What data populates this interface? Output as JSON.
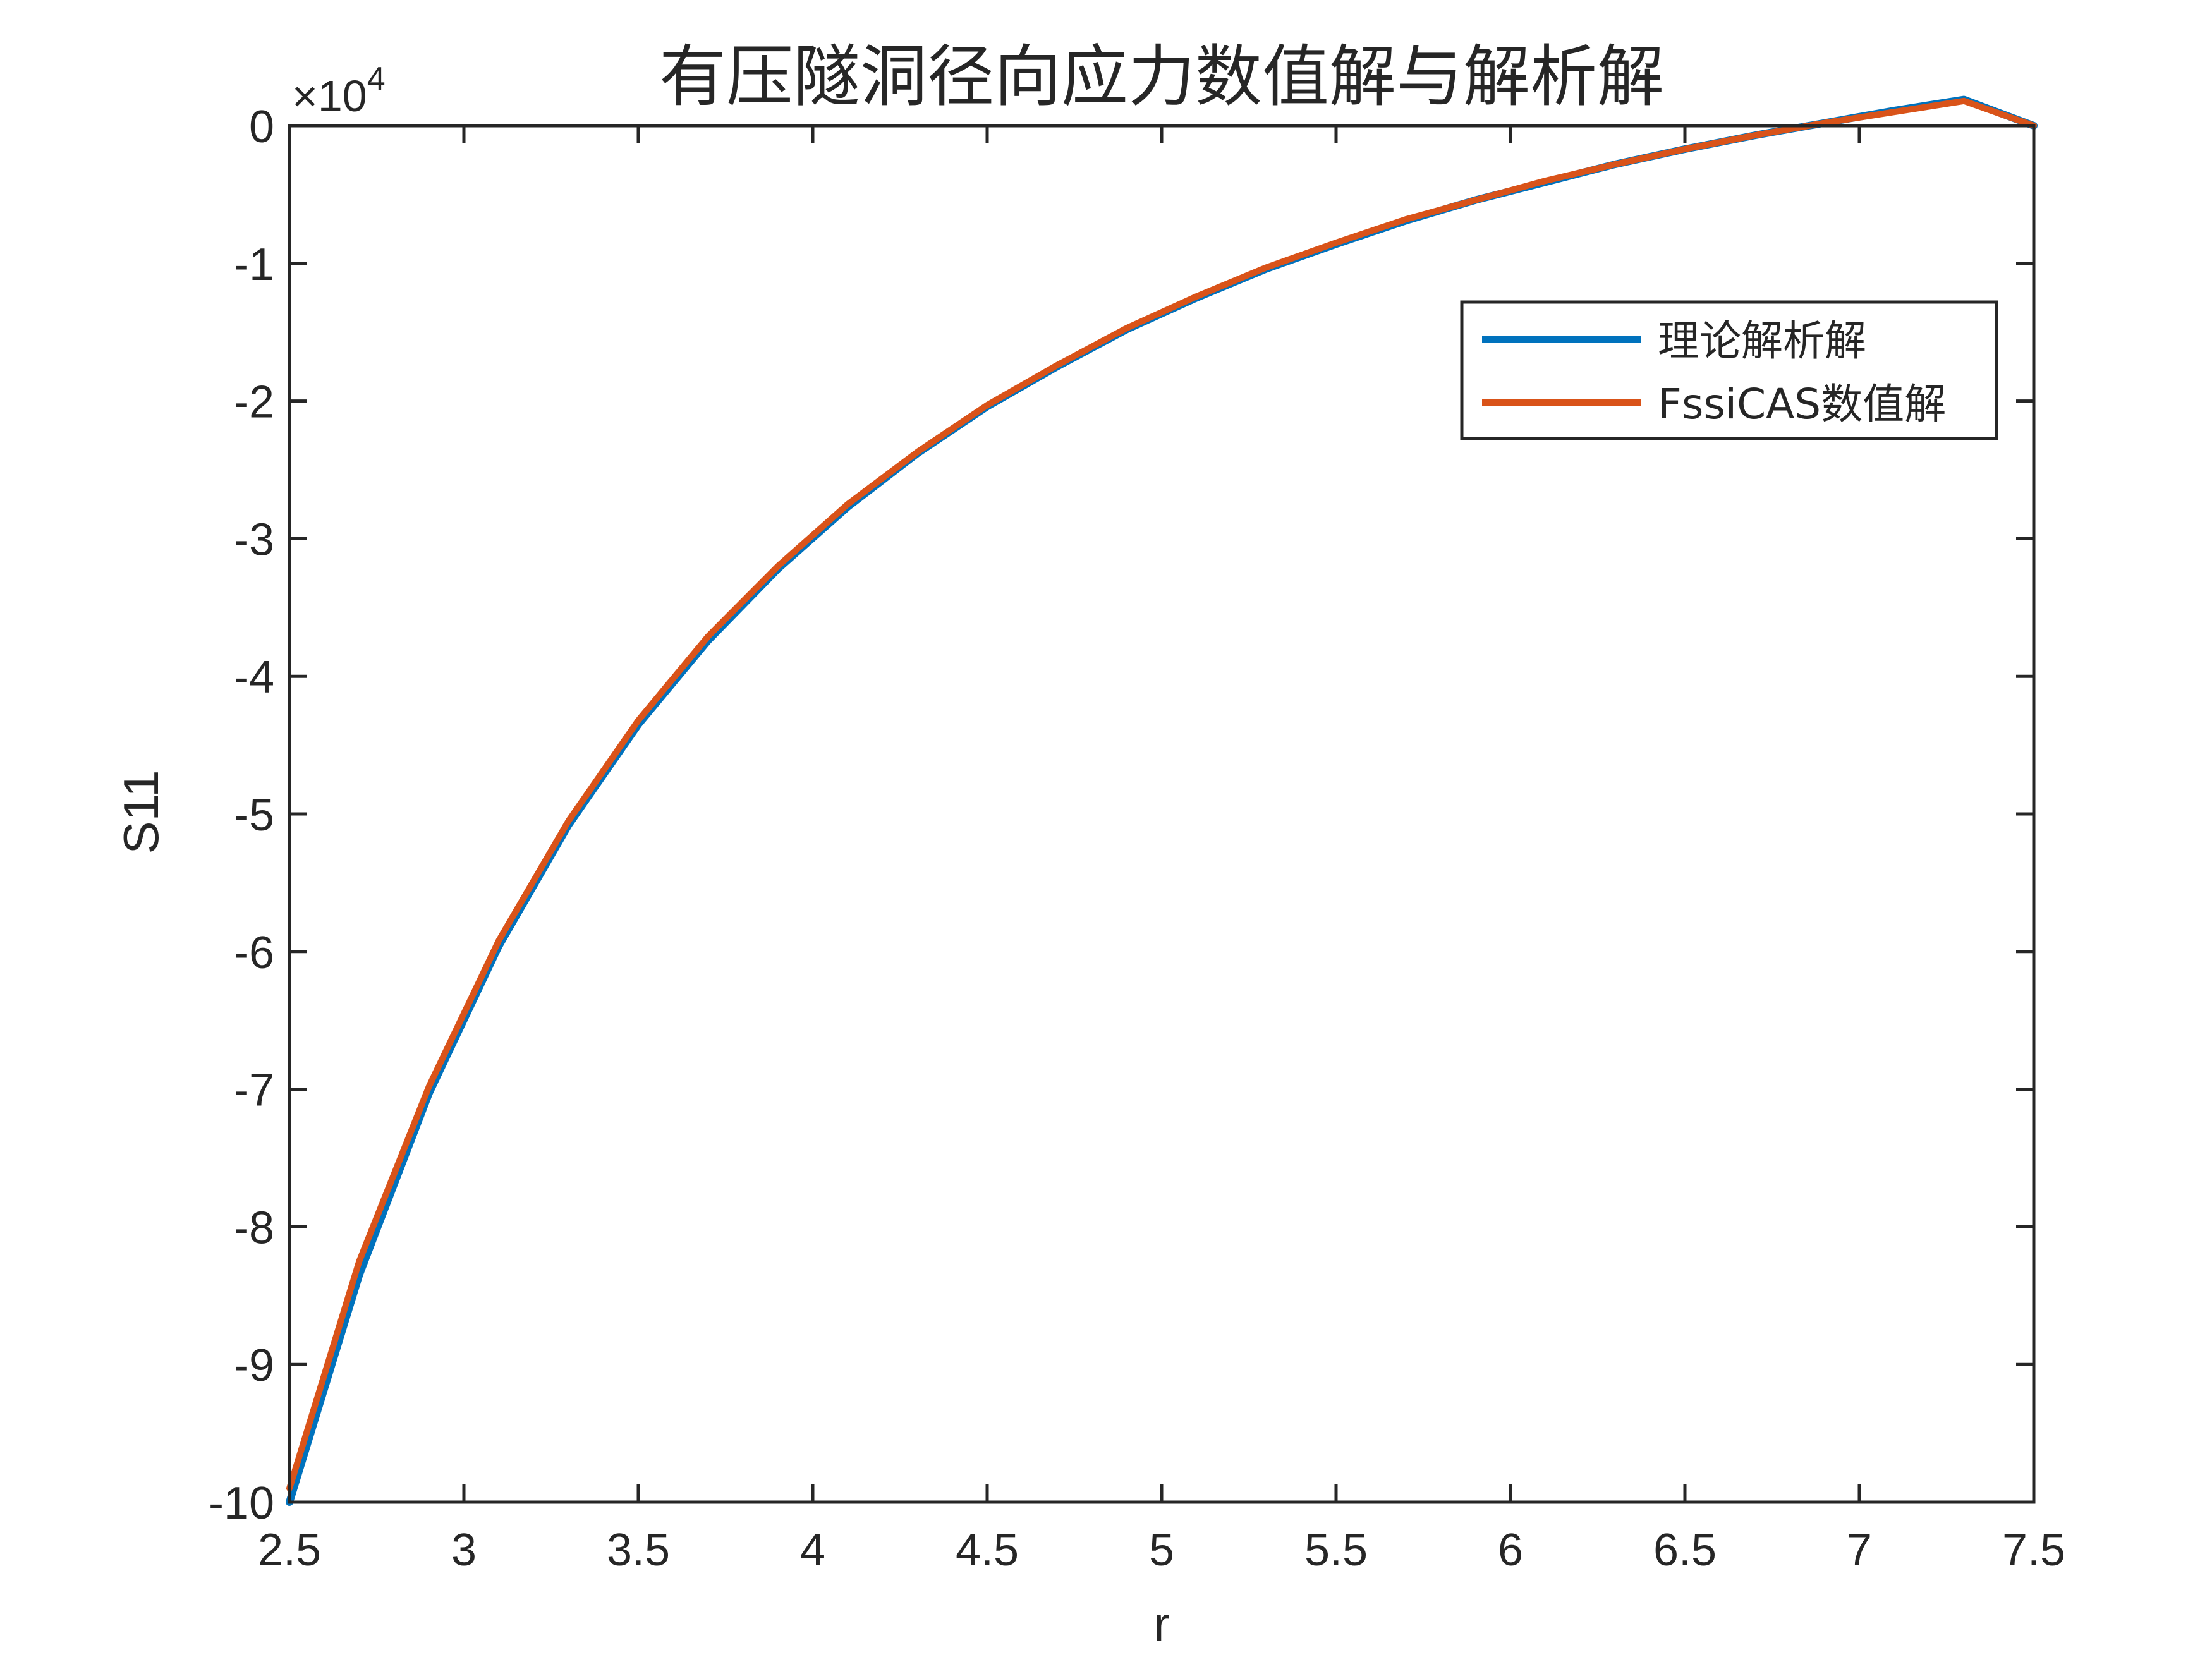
{
  "colors": {
    "background": "#ffffff",
    "axis": "#262626",
    "series_analytical": "#0072BD",
    "series_numerical": "#D95319"
  },
  "chart_data": {
    "type": "line",
    "title": "有压隧洞径向应力数值解与解析解",
    "xlabel": "r",
    "ylabel": "S11",
    "y_exponent_label": "×10",
    "y_exponent_power": "4",
    "xlim": [
      2.5,
      7.5
    ],
    "ylim": [
      -10,
      0
    ],
    "y_scale_factor": 10000,
    "grid": false,
    "legend_position": "top-right",
    "x_ticks": [
      2.5,
      3,
      3.5,
      4,
      4.5,
      5,
      5.5,
      6,
      6.5,
      7,
      7.5
    ],
    "x_tick_labels": [
      "2.5",
      "3",
      "3.5",
      "4",
      "4.5",
      "5",
      "5.5",
      "6",
      "6.5",
      "7",
      "7.5"
    ],
    "y_ticks": [
      0,
      -1,
      -2,
      -3,
      -4,
      -5,
      -6,
      -7,
      -8,
      -9,
      -10
    ],
    "y_tick_labels": [
      "0",
      "-1",
      "-2",
      "-3",
      "-4",
      "-5",
      "-6",
      "-7",
      "-8",
      "-9",
      "-10"
    ],
    "series": [
      {
        "name": "理论解析解",
        "x": [
          2.5,
          2.7,
          2.9,
          3.1,
          3.3,
          3.5,
          3.7,
          3.9,
          4.1,
          4.3,
          4.5,
          4.7,
          4.9,
          5.1,
          5.3,
          5.5,
          5.7,
          5.9,
          6.1,
          6.3,
          6.5,
          6.7,
          6.9,
          7.1,
          7.3,
          7.5
        ],
        "y": [
          -10.0,
          -8.35,
          -7.03,
          -5.96,
          -5.08,
          -4.35,
          -3.74,
          -3.22,
          -2.77,
          -2.38,
          -2.04,
          -1.75,
          -1.48,
          -1.25,
          -1.04,
          -0.86,
          -0.69,
          -0.54,
          -0.41,
          -0.28,
          -0.17,
          -0.07,
          0.02,
          0.11,
          0.19,
          0.0
        ]
      },
      {
        "name": "FssiCAS数值解",
        "x": [
          2.5,
          2.7,
          2.9,
          3.1,
          3.3,
          3.5,
          3.7,
          3.9,
          4.1,
          4.3,
          4.5,
          4.7,
          4.9,
          5.1,
          5.3,
          5.5,
          5.7,
          5.9,
          6.1,
          6.3,
          6.5,
          6.7,
          6.9,
          7.1,
          7.3,
          7.5
        ],
        "y": [
          -9.9,
          -8.25,
          -6.98,
          -5.92,
          -5.05,
          -4.32,
          -3.71,
          -3.2,
          -2.75,
          -2.37,
          -2.03,
          -1.74,
          -1.47,
          -1.24,
          -1.03,
          -0.85,
          -0.68,
          -0.54,
          -0.4,
          -0.28,
          -0.17,
          -0.07,
          0.02,
          0.1,
          0.18,
          0.0
        ]
      }
    ]
  }
}
